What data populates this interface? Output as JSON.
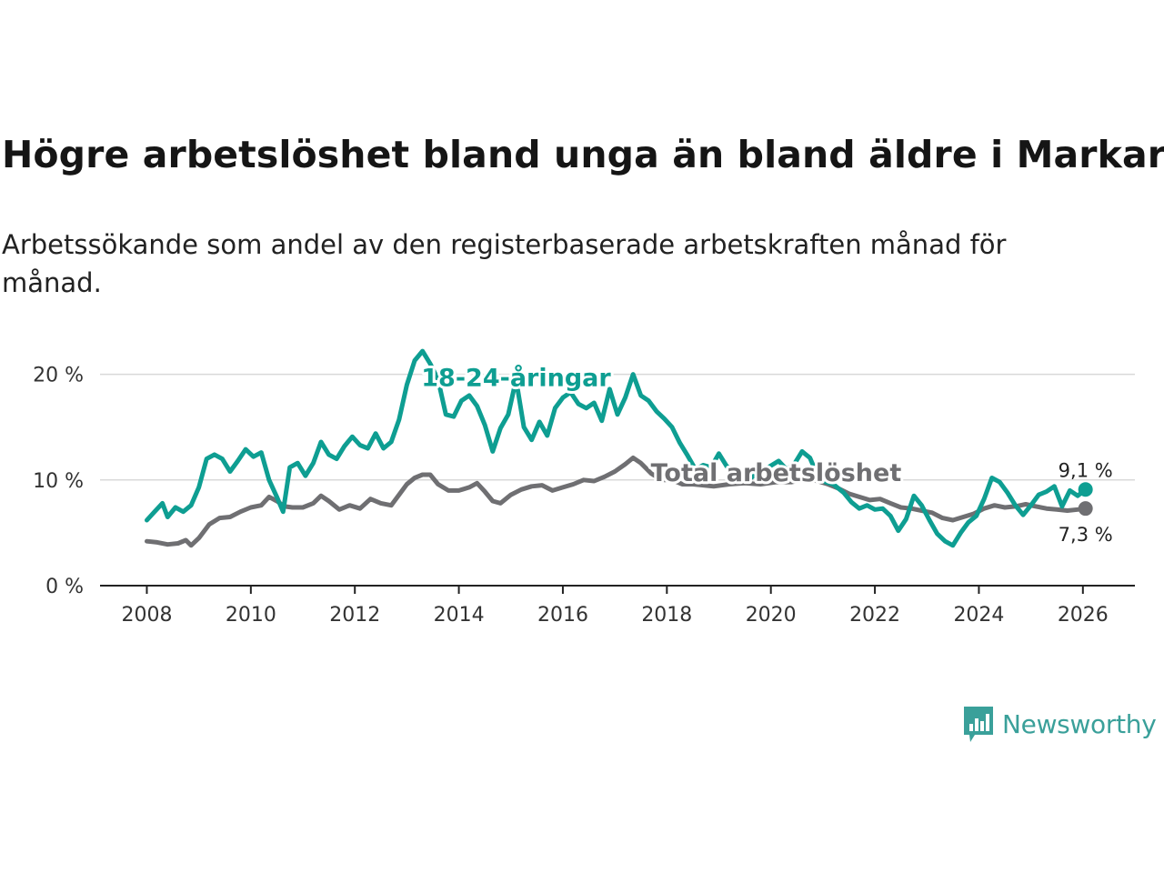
{
  "title": "Högre arbetslöshet bland unga än bland äldre i Markaryd",
  "subtitle": "Arbetssökande som andel av den registerbaserade arbetskraften månad för månad.",
  "brand": {
    "name": "Newsworthy",
    "color": "#3aa09a",
    "icon": "newsworthy-chart-bubble-icon"
  },
  "chart_data": {
    "type": "line",
    "xlim": [
      2007.1,
      2027.0
    ],
    "ylim": [
      0,
      21
    ],
    "x_ticks": [
      2008,
      2010,
      2012,
      2014,
      2016,
      2018,
      2020,
      2022,
      2024,
      2026
    ],
    "x_tick_labels": [
      "2008",
      "2010",
      "2012",
      "2014",
      "2016",
      "2018",
      "2020",
      "2022",
      "2024",
      "2026"
    ],
    "y_ticks": [
      0,
      10,
      20
    ],
    "y_tick_labels": [
      "0 %",
      "10 %",
      "20 %"
    ],
    "grid": true,
    "series": [
      {
        "name": "Total arbetslöshet",
        "label": "Total arbetslöshet",
        "color": "#6f6f72",
        "end_label": "7,3 %",
        "points": [
          [
            2008.0,
            4.2
          ],
          [
            2008.2,
            4.1
          ],
          [
            2008.4,
            3.9
          ],
          [
            2008.6,
            4.0
          ],
          [
            2008.75,
            4.3
          ],
          [
            2008.85,
            3.8
          ],
          [
            2009.0,
            4.5
          ],
          [
            2009.2,
            5.8
          ],
          [
            2009.4,
            6.4
          ],
          [
            2009.6,
            6.5
          ],
          [
            2009.8,
            7.0
          ],
          [
            2010.0,
            7.4
          ],
          [
            2010.2,
            7.6
          ],
          [
            2010.35,
            8.4
          ],
          [
            2010.5,
            8.0
          ],
          [
            2010.65,
            7.5
          ],
          [
            2010.8,
            7.4
          ],
          [
            2011.0,
            7.4
          ],
          [
            2011.2,
            7.8
          ],
          [
            2011.35,
            8.5
          ],
          [
            2011.5,
            8.0
          ],
          [
            2011.7,
            7.2
          ],
          [
            2011.9,
            7.6
          ],
          [
            2012.1,
            7.3
          ],
          [
            2012.3,
            8.2
          ],
          [
            2012.5,
            7.8
          ],
          [
            2012.7,
            7.6
          ],
          [
            2012.85,
            8.6
          ],
          [
            2013.0,
            9.6
          ],
          [
            2013.15,
            10.2
          ],
          [
            2013.3,
            10.5
          ],
          [
            2013.45,
            10.5
          ],
          [
            2013.6,
            9.6
          ],
          [
            2013.8,
            9.0
          ],
          [
            2014.0,
            9.0
          ],
          [
            2014.2,
            9.3
          ],
          [
            2014.35,
            9.7
          ],
          [
            2014.5,
            8.9
          ],
          [
            2014.65,
            8.0
          ],
          [
            2014.8,
            7.8
          ],
          [
            2015.0,
            8.6
          ],
          [
            2015.2,
            9.1
          ],
          [
            2015.4,
            9.4
          ],
          [
            2015.6,
            9.5
          ],
          [
            2015.8,
            9.0
          ],
          [
            2016.0,
            9.3
          ],
          [
            2016.2,
            9.6
          ],
          [
            2016.4,
            10.0
          ],
          [
            2016.6,
            9.9
          ],
          [
            2016.8,
            10.3
          ],
          [
            2017.0,
            10.8
          ],
          [
            2017.2,
            11.5
          ],
          [
            2017.35,
            12.1
          ],
          [
            2017.5,
            11.6
          ],
          [
            2017.7,
            10.6
          ],
          [
            2017.9,
            10.0
          ],
          [
            2018.1,
            10.0
          ],
          [
            2018.3,
            9.6
          ],
          [
            2018.5,
            9.6
          ],
          [
            2018.7,
            9.5
          ],
          [
            2018.9,
            9.4
          ],
          [
            2019.2,
            9.6
          ],
          [
            2019.5,
            9.7
          ],
          [
            2019.8,
            9.6
          ],
          [
            2020.1,
            9.8
          ],
          [
            2020.4,
            9.8
          ],
          [
            2020.7,
            10.1
          ],
          [
            2020.9,
            9.9
          ],
          [
            2021.1,
            9.6
          ],
          [
            2021.3,
            9.2
          ],
          [
            2021.5,
            8.7
          ],
          [
            2021.7,
            8.4
          ],
          [
            2021.9,
            8.1
          ],
          [
            2022.1,
            8.2
          ],
          [
            2022.3,
            7.8
          ],
          [
            2022.5,
            7.4
          ],
          [
            2022.7,
            7.3
          ],
          [
            2022.9,
            7.1
          ],
          [
            2023.1,
            6.9
          ],
          [
            2023.3,
            6.4
          ],
          [
            2023.5,
            6.2
          ],
          [
            2023.7,
            6.5
          ],
          [
            2023.9,
            6.8
          ],
          [
            2024.1,
            7.3
          ],
          [
            2024.3,
            7.6
          ],
          [
            2024.5,
            7.4
          ],
          [
            2024.7,
            7.5
          ],
          [
            2024.9,
            7.7
          ],
          [
            2025.1,
            7.5
          ],
          [
            2025.3,
            7.3
          ],
          [
            2025.5,
            7.2
          ],
          [
            2025.7,
            7.1
          ],
          [
            2025.9,
            7.2
          ],
          [
            2026.05,
            7.3
          ]
        ]
      },
      {
        "name": "18-24-åringar",
        "label": "18-24-åringar",
        "color": "#0e9e92",
        "end_label": "9,1 %",
        "points": [
          [
            2008.0,
            6.2
          ],
          [
            2008.15,
            7.0
          ],
          [
            2008.3,
            7.8
          ],
          [
            2008.4,
            6.5
          ],
          [
            2008.55,
            7.4
          ],
          [
            2008.7,
            7.0
          ],
          [
            2008.85,
            7.6
          ],
          [
            2009.0,
            9.3
          ],
          [
            2009.15,
            12.0
          ],
          [
            2009.3,
            12.4
          ],
          [
            2009.45,
            12.0
          ],
          [
            2009.6,
            10.8
          ],
          [
            2009.75,
            11.8
          ],
          [
            2009.9,
            12.9
          ],
          [
            2010.05,
            12.2
          ],
          [
            2010.2,
            12.6
          ],
          [
            2010.35,
            10.0
          ],
          [
            2010.5,
            8.4
          ],
          [
            2010.62,
            7.0
          ],
          [
            2010.75,
            11.2
          ],
          [
            2010.9,
            11.6
          ],
          [
            2011.05,
            10.4
          ],
          [
            2011.2,
            11.6
          ],
          [
            2011.35,
            13.6
          ],
          [
            2011.5,
            12.4
          ],
          [
            2011.65,
            12.0
          ],
          [
            2011.8,
            13.2
          ],
          [
            2011.95,
            14.1
          ],
          [
            2012.1,
            13.3
          ],
          [
            2012.25,
            13.0
          ],
          [
            2012.4,
            14.4
          ],
          [
            2012.55,
            13.0
          ],
          [
            2012.7,
            13.6
          ],
          [
            2012.85,
            15.7
          ],
          [
            2013.0,
            19.0
          ],
          [
            2013.15,
            21.3
          ],
          [
            2013.3,
            22.2
          ],
          [
            2013.45,
            21.0
          ],
          [
            2013.6,
            19.5
          ],
          [
            2013.75,
            16.2
          ],
          [
            2013.9,
            16.0
          ],
          [
            2014.05,
            17.5
          ],
          [
            2014.2,
            18.0
          ],
          [
            2014.35,
            17.0
          ],
          [
            2014.5,
            15.2
          ],
          [
            2014.65,
            12.7
          ],
          [
            2014.8,
            14.9
          ],
          [
            2014.95,
            16.2
          ],
          [
            2015.1,
            19.5
          ],
          [
            2015.25,
            15.0
          ],
          [
            2015.4,
            13.8
          ],
          [
            2015.55,
            15.5
          ],
          [
            2015.7,
            14.2
          ],
          [
            2015.85,
            16.8
          ],
          [
            2016.0,
            17.8
          ],
          [
            2016.15,
            18.3
          ],
          [
            2016.3,
            17.2
          ],
          [
            2016.45,
            16.8
          ],
          [
            2016.6,
            17.3
          ],
          [
            2016.75,
            15.6
          ],
          [
            2016.9,
            18.6
          ],
          [
            2017.05,
            16.2
          ],
          [
            2017.2,
            17.8
          ],
          [
            2017.35,
            20.0
          ],
          [
            2017.5,
            18.0
          ],
          [
            2017.65,
            17.5
          ],
          [
            2017.8,
            16.5
          ],
          [
            2017.95,
            15.8
          ],
          [
            2018.1,
            15.0
          ],
          [
            2018.25,
            13.5
          ],
          [
            2018.4,
            12.3
          ],
          [
            2018.55,
            11.0
          ],
          [
            2018.7,
            11.4
          ],
          [
            2018.85,
            11.2
          ],
          [
            2019.0,
            12.5
          ],
          [
            2019.15,
            11.3
          ],
          [
            2019.35,
            10.6
          ],
          [
            2019.55,
            10.0
          ],
          [
            2019.75,
            10.6
          ],
          [
            2019.95,
            11.2
          ],
          [
            2020.15,
            11.8
          ],
          [
            2020.3,
            11.0
          ],
          [
            2020.45,
            11.5
          ],
          [
            2020.6,
            12.7
          ],
          [
            2020.75,
            12.1
          ],
          [
            2020.9,
            10.4
          ],
          [
            2021.05,
            9.8
          ],
          [
            2021.2,
            9.6
          ],
          [
            2021.4,
            8.8
          ],
          [
            2021.55,
            7.9
          ],
          [
            2021.7,
            7.3
          ],
          [
            2021.85,
            7.6
          ],
          [
            2022.0,
            7.2
          ],
          [
            2022.15,
            7.3
          ],
          [
            2022.3,
            6.6
          ],
          [
            2022.45,
            5.2
          ],
          [
            2022.6,
            6.3
          ],
          [
            2022.75,
            8.5
          ],
          [
            2022.9,
            7.6
          ],
          [
            2023.05,
            6.2
          ],
          [
            2023.2,
            4.9
          ],
          [
            2023.35,
            4.2
          ],
          [
            2023.5,
            3.8
          ],
          [
            2023.65,
            5.0
          ],
          [
            2023.8,
            6.0
          ],
          [
            2023.95,
            6.6
          ],
          [
            2024.1,
            8.2
          ],
          [
            2024.25,
            10.2
          ],
          [
            2024.4,
            9.8
          ],
          [
            2024.55,
            8.8
          ],
          [
            2024.7,
            7.6
          ],
          [
            2024.85,
            6.7
          ],
          [
            2025.0,
            7.6
          ],
          [
            2025.15,
            8.6
          ],
          [
            2025.3,
            8.9
          ],
          [
            2025.45,
            9.4
          ],
          [
            2025.6,
            7.5
          ],
          [
            2025.75,
            9.0
          ],
          [
            2025.9,
            8.5
          ],
          [
            2026.05,
            9.1
          ]
        ]
      }
    ],
    "annotations": [
      {
        "text": "18-24-åringar",
        "series": "18-24-åringar",
        "at": [
          2015.1,
          18.9
        ]
      },
      {
        "text": "Total arbetslöshet",
        "series": "Total arbetslöshet",
        "at": [
          2020.1,
          9.9
        ]
      }
    ]
  }
}
